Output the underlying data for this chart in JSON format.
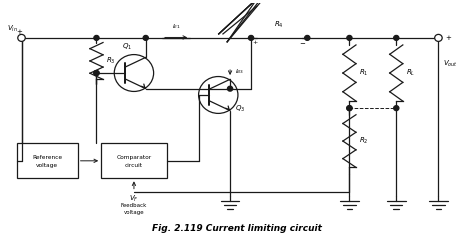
{
  "title": "Fig. 2.119 Current limiting circuit",
  "background_color": "#ffffff",
  "line_color": "#1a1a1a",
  "fig_width": 4.74,
  "fig_height": 2.47,
  "dpi": 100,
  "xlim": [
    0,
    100
  ],
  "ylim": [
    0,
    55
  ]
}
